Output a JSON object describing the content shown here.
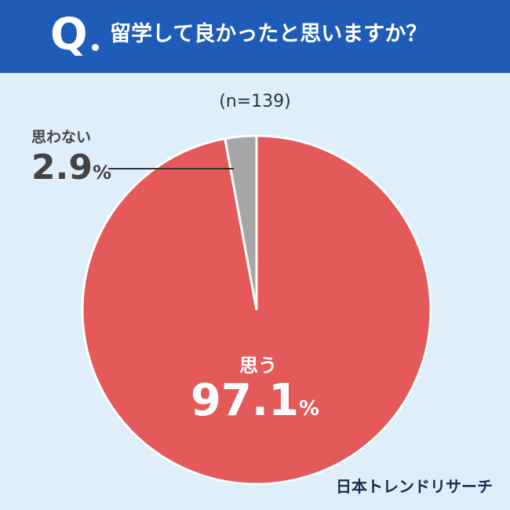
{
  "header": {
    "q_letter": "Q",
    "question": "留学して良かったと思いますか？"
  },
  "sample_size": "(n=139)",
  "chart_data": {
    "type": "pie",
    "slices": [
      {
        "label": "思う",
        "value": 97.1,
        "color": "#e45a5a"
      },
      {
        "label": "思わない",
        "value": 2.9,
        "color": "#a6a6a6"
      }
    ]
  },
  "labels": {
    "yes": {
      "text": "思う",
      "number": "97.1",
      "unit": "%"
    },
    "no": {
      "text": "思わない",
      "number": "2.9",
      "unit": "%"
    }
  },
  "brand": "日本トレンドリサーチ"
}
